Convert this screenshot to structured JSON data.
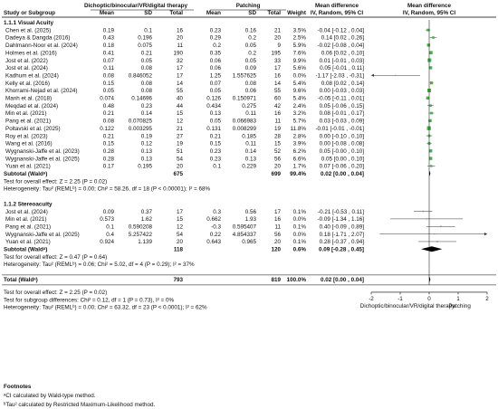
{
  "header": {
    "col_study": "Study or Subgroup",
    "group1": "Dichoptic/binocular/VR/digital therapy",
    "group2": "Patching",
    "mean": "Mean",
    "sd": "SD",
    "total": "Total",
    "weight": "Weight",
    "md1_top": "Mean difference",
    "md1_bot": "IV, Random, 95% CI",
    "md2_top": "Mean difference",
    "md2_bot": "IV, Random, 95% CI"
  },
  "chart_data": {
    "type": "forest",
    "xlim": [
      -2,
      2
    ],
    "xticks": [
      -2,
      -1,
      0,
      1,
      2
    ],
    "xlabel_left": "Dichoptic/binocular/VR/digital therapy",
    "xlabel_right": "Patching",
    "subgroups": [
      {
        "title": "1.1.1 Visual Acuity",
        "studies": [
          {
            "name": "Chen et al. (2025)",
            "m1": "0.19",
            "sd1": "0.1",
            "n1": "16",
            "m2": "0.23",
            "sd2": "0.16",
            "n2": "21",
            "weight": "3.5%",
            "ci": "-0.04 [-0.12 , 0.04]",
            "md": -0.04,
            "lo": -0.12,
            "hi": 0.04
          },
          {
            "name": "Dadeya & Dangda (2016)",
            "m1": "0.43",
            "sd1": "0.196",
            "n1": "20",
            "m2": "0.29",
            "sd2": "0.2",
            "n2": "20",
            "weight": "2.5%",
            "ci": "0.14 [0.02 , 0.26]",
            "md": 0.14,
            "lo": 0.02,
            "hi": 0.26
          },
          {
            "name": "Dahlmann-Noor et al. (2024)",
            "m1": "0.18",
            "sd1": "0.075",
            "n1": "11",
            "m2": "0.2",
            "sd2": "0.05",
            "n2": "9",
            "weight": "5.9%",
            "ci": "-0.02 [-0.08 , 0.04]",
            "md": -0.02,
            "lo": -0.08,
            "hi": 0.04
          },
          {
            "name": "Holmes et al. (2016)",
            "m1": "0.41",
            "sd1": "0.21",
            "n1": "190",
            "m2": "0.35",
            "sd2": "0.2",
            "n2": "195",
            "weight": "7.6%",
            "ci": "0.06 [0.02 , 0.10]",
            "md": 0.06,
            "lo": 0.02,
            "hi": 0.1
          },
          {
            "name": "Jost et al. (2022)",
            "m1": "0.07",
            "sd1": "0.05",
            "n1": "32",
            "m2": "0.06",
            "sd2": "0.05",
            "n2": "33",
            "weight": "9.9%",
            "ci": "0.01 [-0.01 , 0.03]",
            "md": 0.01,
            "lo": -0.01,
            "hi": 0.03
          },
          {
            "name": "Jost et al. (2024)",
            "m1": "0.11",
            "sd1": "0.08",
            "n1": "17",
            "m2": "0.06",
            "sd2": "0.09",
            "n2": "17",
            "weight": "5.6%",
            "ci": "0.05 [-0.01 , 0.11]",
            "md": 0.05,
            "lo": -0.01,
            "hi": 0.11
          },
          {
            "name": "Kadhum et al. (2024)",
            "m1": "0.08",
            "sd1": "0.846052",
            "n1": "17",
            "m2": "1.25",
            "sd2": "1.557625",
            "n2": "16",
            "weight": "0.0%",
            "ci": "-1.17 [-2.03 , -0.31]",
            "md": -1.17,
            "lo": -2.03,
            "hi": -0.31
          },
          {
            "name": "Kelly et al. (2016)",
            "m1": "0.15",
            "sd1": "0.08",
            "n1": "14",
            "m2": "0.07",
            "sd2": "0.08",
            "n2": "14",
            "weight": "5.4%",
            "ci": "0.08 [0.02 , 0.14]",
            "md": 0.08,
            "lo": 0.02,
            "hi": 0.14
          },
          {
            "name": "Khorrami-Nejad et al. (2024)",
            "m1": "0.05",
            "sd1": "0.08",
            "n1": "55",
            "m2": "0.05",
            "sd2": "0.06",
            "n2": "55",
            "weight": "9.6%",
            "ci": "0.00 [-0.03 , 0.03]",
            "md": 0.0,
            "lo": -0.03,
            "hi": 0.03
          },
          {
            "name": "Manh et al. (2018)",
            "m1": "0.074",
            "sd1": "0.14696",
            "n1": "40",
            "m2": "0.126",
            "sd2": "0.150971",
            "n2": "60",
            "weight": "5.4%",
            "ci": "-0.05 [-0.11 , 0.01]",
            "md": -0.05,
            "lo": -0.11,
            "hi": 0.01
          },
          {
            "name": "Meqdad et al. (2024)",
            "m1": "0.48",
            "sd1": "0.23",
            "n1": "44",
            "m2": "0.434",
            "sd2": "0.275",
            "n2": "42",
            "weight": "2.4%",
            "ci": "0.05 [-0.06 , 0.15]",
            "md": 0.05,
            "lo": -0.06,
            "hi": 0.15
          },
          {
            "name": "Min et al. (2021)",
            "m1": "0.21",
            "sd1": "0.14",
            "n1": "15",
            "m2": "0.13",
            "sd2": "0.11",
            "n2": "16",
            "weight": "3.2%",
            "ci": "0.08 [-0.01 , 0.17]",
            "md": 0.08,
            "lo": -0.01,
            "hi": 0.17
          },
          {
            "name": "Pang et al. (2021)",
            "m1": "0.08",
            "sd1": "0.070825",
            "n1": "12",
            "m2": "0.05",
            "sd2": "0.066983",
            "n2": "11",
            "weight": "5.7%",
            "ci": "0.03 [-0.03 , 0.09]",
            "md": 0.03,
            "lo": -0.03,
            "hi": 0.09
          },
          {
            "name": "Poltavski et al. (2025)",
            "m1": "0.122",
            "sd1": "0.003295",
            "n1": "21",
            "m2": "0.131",
            "sd2": "0.008299",
            "n2": "19",
            "weight": "11.8%",
            "ci": "-0.01 [-0.01 , -0.01]",
            "md": -0.01,
            "lo": -0.013,
            "hi": -0.005
          },
          {
            "name": "Roy et al. (2023)",
            "m1": "0.21",
            "sd1": "0.19",
            "n1": "27",
            "m2": "0.21",
            "sd2": "0.185",
            "n2": "28",
            "weight": "2.8%",
            "ci": "0.00 [-0.10 , 0.10]",
            "md": 0.0,
            "lo": -0.1,
            "hi": 0.1
          },
          {
            "name": "Wang et al. (2016)",
            "m1": "0.15",
            "sd1": "0.12",
            "n1": "19",
            "m2": "0.15",
            "sd2": "0.11",
            "n2": "15",
            "weight": "3.9%",
            "ci": "0.00 [-0.08 , 0.08]",
            "md": 0.0,
            "lo": -0.08,
            "hi": 0.08
          },
          {
            "name": "Wygnanski-Jaffe et al. (2023)",
            "m1": "0.28",
            "sd1": "0.13",
            "n1": "51",
            "m2": "0.23",
            "sd2": "0.14",
            "n2": "52",
            "weight": "6.2%",
            "ci": "0.05 [-0.00 , 0.10]",
            "md": 0.05,
            "lo": 0.0,
            "hi": 0.1
          },
          {
            "name": "Wygnanski-Jaffe et al. (2025)",
            "m1": "0.28",
            "sd1": "0.13",
            "n1": "54",
            "m2": "0.23",
            "sd2": "0.13",
            "n2": "56",
            "weight": "6.6%",
            "ci": "0.05 [0.00 , 0.10]",
            "md": 0.05,
            "lo": 0.0,
            "hi": 0.1
          },
          {
            "name": "Yuan et al. (2021)",
            "m1": "0.17",
            "sd1": "0.195",
            "n1": "20",
            "m2": "0.1",
            "sd2": "0.229",
            "n2": "20",
            "weight": "1.7%",
            "ci": "0.07 [-0.06 , 0.20]",
            "md": 0.07,
            "lo": -0.06,
            "hi": 0.2
          }
        ],
        "subtotal": {
          "label": "Subtotal (Waldᵃ)",
          "n1": "675",
          "n2": "699",
          "weight": "99.4%",
          "ci": "0.02 [0.00 , 0.04]",
          "md": 0.02,
          "lo": 0.0,
          "hi": 0.04
        },
        "test": "Test for overall effect: Z = 2.25 (P = 0.02)",
        "het": "Heterogeneity: Tau² (REMLᵇ) = 0.00; Chi² = 58.26, df = 18 (P < 0.00001); I² = 68%"
      },
      {
        "title": "1.1.2 Stereoacuity",
        "studies": [
          {
            "name": "Jost et al. (2024)",
            "m1": "0.09",
            "sd1": "0.37",
            "n1": "17",
            "m2": "0.3",
            "sd2": "0.56",
            "n2": "17",
            "weight": "0.1%",
            "ci": "-0.21 [-0.53 , 0.11]",
            "md": -0.21,
            "lo": -0.53,
            "hi": 0.11
          },
          {
            "name": "Min et al. (2021)",
            "m1": "0.573",
            "sd1": "1.62",
            "n1": "15",
            "m2": "0.662",
            "sd2": "1.93",
            "n2": "16",
            "weight": "0.0%",
            "ci": "-0.09 [-1.34 , 1.16]",
            "md": -0.09,
            "lo": -1.34,
            "hi": 1.16
          },
          {
            "name": "Pang et al. (2021)",
            "m1": "0.1",
            "sd1": "0.590208",
            "n1": "12",
            "m2": "-0.3",
            "sd2": "0.595407",
            "n2": "11",
            "weight": "0.1%",
            "ci": "0.40 [-0.09 , 0.89]",
            "md": 0.4,
            "lo": -0.09,
            "hi": 0.89
          },
          {
            "name": "Wygnanski-Jaffe et al. (2025)",
            "m1": "0.4",
            "sd1": "5.257422",
            "n1": "54",
            "m2": "0.22",
            "sd2": "4.854337",
            "n2": "56",
            "weight": "0.0%",
            "ci": "0.18 [-1.71 , 2.07]",
            "md": 0.18,
            "lo": -1.71,
            "hi": 2.07
          },
          {
            "name": "Yuan et al. (2021)",
            "m1": "0.924",
            "sd1": "1.139",
            "n1": "20",
            "m2": "0.643",
            "sd2": "0.965",
            "n2": "20",
            "weight": "0.1%",
            "ci": "0.28 [-0.37 , 0.94]",
            "md": 0.28,
            "lo": -0.37,
            "hi": 0.94
          }
        ],
        "subtotal": {
          "label": "Subtotal (Waldᵃ)",
          "n1": "118",
          "n2": "120",
          "weight": "0.6%",
          "ci": "0.09 [-0.28 , 0.45]",
          "md": 0.09,
          "lo": -0.28,
          "hi": 0.45
        },
        "test": "Test for overall effect: Z = 0.47 (P = 0.64)",
        "het": "Heterogeneity: Tau² (REMLᵇ) = 0.06; Chi² = 5.02, df = 4 (P = 0.29); I² = 37%"
      }
    ],
    "total": {
      "label": "Total (Waldᵃ)",
      "n1": "793",
      "n2": "819",
      "weight": "100.0%",
      "ci": "0.02 [0.00 , 0.04]",
      "md": 0.02,
      "lo": 0.0,
      "hi": 0.04
    },
    "overall_test": "Test for overall effect: Z = 2.25 (P = 0.02)",
    "subgroup_test": "Test for subgroup differences: Chi² = 0.12, df = 1 (P = 0.73), I² = 0%",
    "overall_het": "Heterogeneity: Tau² (REMLᵇ) = 0.00; Chi² = 63.32, df = 23 (P < 0.0001); I² = 62%",
    "colors": {
      "marker": "#4caf50",
      "diamond": "#000000",
      "axis": "#000000"
    }
  },
  "footnotes": {
    "title": "Footnotes",
    "a": "ᵃCI calculated by Wald-type method.",
    "b": "ᵇTau² calculated by Restricted Maximum-Likelihood method."
  }
}
